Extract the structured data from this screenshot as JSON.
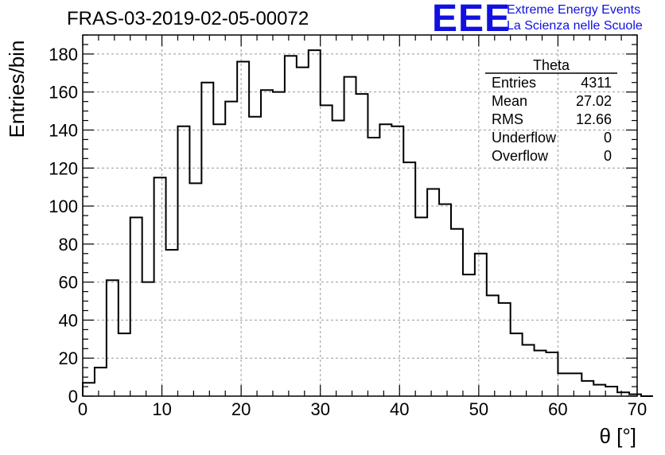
{
  "header": {
    "title": "FRAS-03-2019-02-05-00072",
    "logo": "EEE",
    "org_line1": "Extreme Energy Events",
    "org_line2": "La Scienza nelle Scuole",
    "brand_color": "#1010e0"
  },
  "stats": {
    "name": "Theta",
    "rows": [
      {
        "label": "Entries",
        "value": "4311"
      },
      {
        "label": "Mean",
        "value": "27.02"
      },
      {
        "label": "RMS",
        "value": "12.66"
      },
      {
        "label": "Underflow",
        "value": "0"
      },
      {
        "label": "Overflow",
        "value": "0"
      }
    ]
  },
  "chart_data": {
    "type": "bar",
    "style": "step-histogram",
    "xlabel": "θ [°]",
    "ylabel": "Entries/bin",
    "xlim": [
      0,
      70
    ],
    "ylim": [
      0,
      190
    ],
    "xticks": [
      0,
      10,
      20,
      30,
      40,
      50,
      60,
      70
    ],
    "yticks": [
      0,
      20,
      40,
      60,
      80,
      100,
      120,
      140,
      160,
      180
    ],
    "grid": true,
    "bin_width": 1.5,
    "bin_edges_start": 0,
    "values": [
      7,
      15,
      61,
      33,
      94,
      60,
      115,
      77,
      142,
      112,
      165,
      143,
      155,
      176,
      147,
      161,
      160,
      179,
      173,
      182,
      153,
      145,
      168,
      159,
      136,
      143,
      142,
      123,
      94,
      109,
      101,
      88,
      64,
      75,
      53,
      49,
      33,
      27,
      24,
      23,
      12,
      12,
      8,
      6,
      5,
      2,
      1,
      0
    ]
  }
}
